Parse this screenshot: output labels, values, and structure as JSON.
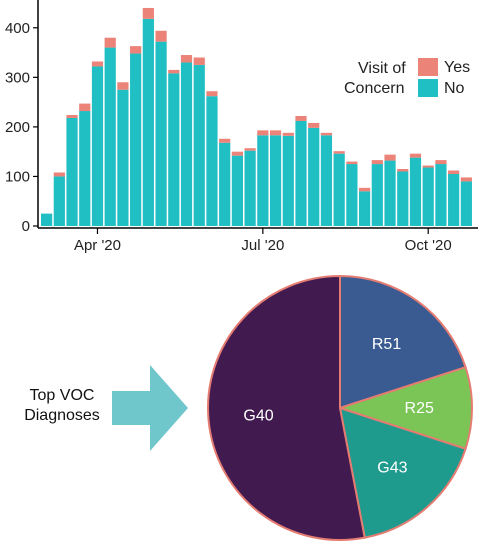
{
  "colors": {
    "yes": "#ec8379",
    "no": "#1fbfc4",
    "arrow": "#6fc6cb",
    "axis": "#000000",
    "pie_border": "#e57c72"
  },
  "caption": {
    "line1": "Top VOC",
    "line2": "Diagnoses"
  },
  "chart_data": [
    {
      "type": "bar",
      "stacked": true,
      "title": "",
      "xlabel": "",
      "ylabel": "",
      "ylim": [
        0,
        450
      ],
      "yticks": [
        0,
        100,
        200,
        300,
        400
      ],
      "xticks": [
        {
          "label": "Apr '20",
          "at_bar": 4
        },
        {
          "label": "Jul '20",
          "at_bar": 17
        },
        {
          "label": "Oct '20",
          "at_bar": 30
        }
      ],
      "legend": {
        "title_line1": "Visit of",
        "title_line2": "Concern",
        "position": "right",
        "labels": [
          "Yes",
          "No"
        ]
      },
      "series": [
        {
          "name": "No",
          "color": "#1fbfc4",
          "values": [
            25,
            100,
            218,
            232,
            322,
            360,
            275,
            348,
            418,
            372,
            308,
            330,
            325,
            262,
            168,
            142,
            152,
            183,
            183,
            182,
            212,
            198,
            183,
            146,
            125,
            70,
            125,
            132,
            110,
            138,
            118,
            125,
            105,
            90
          ]
        },
        {
          "name": "Yes",
          "color": "#ec8379",
          "values": [
            0,
            8,
            6,
            15,
            10,
            20,
            15,
            15,
            22,
            22,
            7,
            15,
            15,
            10,
            8,
            8,
            5,
            10,
            10,
            6,
            10,
            10,
            5,
            5,
            5,
            7,
            8,
            12,
            5,
            8,
            4,
            8,
            7,
            8
          ]
        }
      ]
    },
    {
      "type": "pie",
      "title": "",
      "slices": [
        {
          "label": "R51",
          "value": 20,
          "color": "#3a5b91"
        },
        {
          "label": "R25",
          "value": 10,
          "color": "#7ac555"
        },
        {
          "label": "G43",
          "value": 17,
          "color": "#1f9b8e"
        },
        {
          "label": "G40",
          "value": 53,
          "color": "#411a50"
        }
      ]
    }
  ]
}
